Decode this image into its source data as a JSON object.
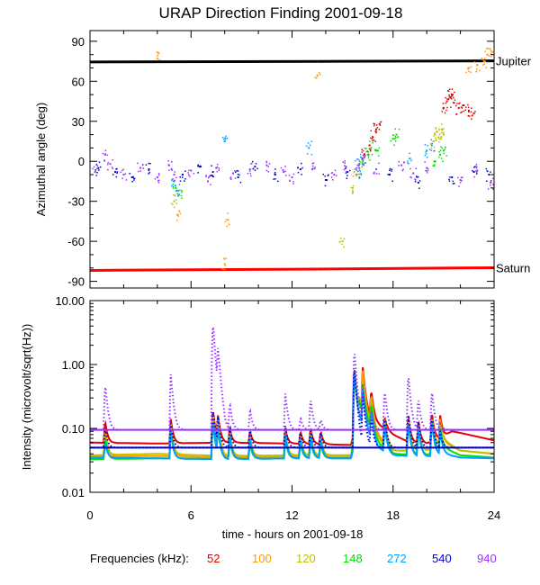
{
  "chart_data": [
    {
      "type": "scatter",
      "title": "URAP Direction Finding  2001-09-18",
      "ylabel": "Azimuthal angle (deg)",
      "xlabel": "",
      "xlim": [
        0,
        24
      ],
      "ylim": [
        -95,
        98
      ],
      "y_ticks": [
        {
          "v": 90,
          "label": "90"
        },
        {
          "v": 60,
          "label": "60"
        },
        {
          "v": 30,
          "label": "30"
        },
        {
          "v": 0,
          "label": "0"
        },
        {
          "v": -30,
          "label": "-30"
        },
        {
          "v": -60,
          "label": "-60"
        },
        {
          "v": -90,
          "label": "-90"
        }
      ],
      "reference_lines": [
        {
          "name": "Jupiter",
          "label": "Jupiter",
          "color": "#000000",
          "y_start": 74.5,
          "y_end": 75.3
        },
        {
          "name": "Saturn",
          "label": "Saturn",
          "color": "#ff0000",
          "y_start": -81.8,
          "y_end": -79.8
        }
      ],
      "series": [
        {
          "name": "52 kHz",
          "color": "#e00000",
          "points": [
            [
              16.3,
              5
            ],
            [
              16.6,
              12
            ],
            [
              16.8,
              18
            ],
            [
              17.0,
              24
            ],
            [
              17.2,
              28
            ],
            [
              21.0,
              40
            ],
            [
              21.2,
              45
            ],
            [
              21.4,
              48
            ],
            [
              21.6,
              44
            ],
            [
              21.9,
              40
            ],
            [
              22.2,
              42
            ],
            [
              22.5,
              38
            ],
            [
              22.8,
              36
            ],
            [
              21.5,
              50
            ]
          ]
        },
        {
          "name": "100 kHz",
          "color": "#ff9900",
          "points": [
            [
              4.0,
              77
            ],
            [
              5.2,
              -40
            ],
            [
              8.2,
              -44
            ],
            [
              15.8,
              -10
            ],
            [
              22.5,
              70
            ],
            [
              23.0,
              72
            ],
            [
              23.4,
              75
            ],
            [
              23.6,
              80
            ],
            [
              23.9,
              82
            ],
            [
              13.5,
              64
            ],
            [
              8.0,
              -77
            ]
          ]
        },
        {
          "name": "120 kHz",
          "color": "#c0c000",
          "points": [
            [
              5.0,
              -30
            ],
            [
              15.6,
              -20
            ],
            [
              16.0,
              -5
            ],
            [
              20.4,
              15
            ],
            [
              20.7,
              18
            ],
            [
              21.0,
              20
            ],
            [
              20.6,
              22
            ],
            [
              20.9,
              24
            ],
            [
              15.0,
              -60
            ]
          ]
        },
        {
          "name": "148 kHz",
          "color": "#00e000",
          "points": [
            [
              5.1,
              -20
            ],
            [
              5.3,
              -25
            ],
            [
              16.2,
              0
            ],
            [
              16.5,
              5
            ],
            [
              16.7,
              10
            ],
            [
              17.1,
              8
            ],
            [
              18.0,
              17
            ],
            [
              18.2,
              20
            ],
            [
              20.8,
              5
            ],
            [
              21.0,
              8
            ],
            [
              20.5,
              0
            ]
          ]
        },
        {
          "name": "272 kHz",
          "color": "#00a0ff",
          "points": [
            [
              5.0,
              -15
            ],
            [
              5.2,
              -22
            ],
            [
              8.0,
              15
            ],
            [
              13.0,
              10
            ],
            [
              15.9,
              -3
            ],
            [
              16.2,
              2
            ],
            [
              19.0,
              2
            ],
            [
              20.0,
              8
            ],
            [
              20.3,
              12
            ],
            [
              16.0,
              -12
            ]
          ]
        },
        {
          "name": "540 kHz",
          "color": "#0000cc",
          "points": [
            [
              0.5,
              -5
            ],
            [
              1.5,
              -8
            ],
            [
              2.5,
              -12
            ],
            [
              3.5,
              -6
            ],
            [
              5.5,
              -10
            ],
            [
              6.5,
              -4
            ],
            [
              7.3,
              -8
            ],
            [
              8.8,
              -12
            ],
            [
              9.8,
              -4
            ],
            [
              11.0,
              -10
            ],
            [
              12.5,
              -6
            ],
            [
              14.0,
              -14
            ],
            [
              15.3,
              -8
            ],
            [
              17.8,
              -10
            ],
            [
              19.5,
              -16
            ],
            [
              21.5,
              -12
            ],
            [
              22.8,
              -8
            ],
            [
              23.7,
              -10
            ]
          ]
        },
        {
          "name": "940 kHz",
          "color": "#9933ff",
          "points": [
            [
              0.3,
              -8
            ],
            [
              0.9,
              5
            ],
            [
              1.2,
              -2
            ],
            [
              2.0,
              -10
            ],
            [
              3.0,
              -5
            ],
            [
              4.0,
              -12
            ],
            [
              4.7,
              -3
            ],
            [
              5.0,
              -10
            ],
            [
              6.0,
              -7
            ],
            [
              7.0,
              -15
            ],
            [
              7.5,
              -5
            ],
            [
              8.5,
              -9
            ],
            [
              9.5,
              -6
            ],
            [
              10.5,
              -3
            ],
            [
              11.5,
              -8
            ],
            [
              12.0,
              -12
            ],
            [
              13.2,
              -6
            ],
            [
              14.5,
              -10
            ],
            [
              15.2,
              -4
            ],
            [
              16.0,
              -2
            ],
            [
              16.3,
              3
            ],
            [
              17.0,
              -6
            ],
            [
              18.5,
              -3
            ],
            [
              19.2,
              -9
            ],
            [
              20.0,
              -5
            ],
            [
              22.0,
              -14
            ],
            [
              23.0,
              -7
            ],
            [
              23.8,
              -16
            ]
          ]
        }
      ]
    },
    {
      "type": "line",
      "ylabel": "Intensity (microvolt/sqrt(Hz))",
      "xlabel": "time - hours on 2001-09-18",
      "xlim": [
        0,
        24
      ],
      "ylim_log": [
        0.01,
        10
      ],
      "x_ticks": [
        {
          "v": 0,
          "label": "0"
        },
        {
          "v": 6,
          "label": "6"
        },
        {
          "v": 12,
          "label": "12"
        },
        {
          "v": 18,
          "label": "18"
        },
        {
          "v": 24,
          "label": "24"
        }
      ],
      "y_ticks": [
        {
          "v": 10,
          "label": "10.00"
        },
        {
          "v": 1,
          "label": "1.00"
        },
        {
          "v": 0.1,
          "label": "0.10"
        },
        {
          "v": 0.01,
          "label": "0.01"
        }
      ],
      "bursts": [
        {
          "t": 0.9,
          "amps": [
            0.13,
            0.1,
            0.08,
            0.07,
            0.06,
            0.1,
            0.5
          ]
        },
        {
          "t": 4.8,
          "amps": [
            0.14,
            0.12,
            0.1,
            0.09,
            0.09,
            0.12,
            0.7
          ]
        },
        {
          "t": 7.3,
          "amps": [
            0.2,
            0.18,
            0.15,
            0.13,
            0.14,
            0.2,
            4.5
          ]
        },
        {
          "t": 7.6,
          "amps": [
            0.16,
            0.14,
            0.12,
            0.1,
            0.1,
            0.15,
            1.8
          ]
        },
        {
          "t": 8.3,
          "amps": [
            0.1,
            0.09,
            0.08,
            0.07,
            0.08,
            0.11,
            0.25
          ]
        },
        {
          "t": 9.5,
          "amps": [
            0.09,
            0.08,
            0.07,
            0.06,
            0.07,
            0.1,
            0.2
          ]
        },
        {
          "t": 11.6,
          "amps": [
            0.1,
            0.09,
            0.08,
            0.07,
            0.08,
            0.11,
            0.35
          ]
        },
        {
          "t": 12.5,
          "amps": [
            0.09,
            0.08,
            0.07,
            0.06,
            0.07,
            0.09,
            0.15
          ]
        },
        {
          "t": 13.1,
          "amps": [
            0.1,
            0.09,
            0.08,
            0.07,
            0.08,
            0.1,
            0.3
          ]
        },
        {
          "t": 13.7,
          "amps": [
            0.09,
            0.08,
            0.07,
            0.06,
            0.07,
            0.09,
            0.14
          ]
        },
        {
          "t": 15.7,
          "amps": [
            0.8,
            0.9,
            0.8,
            0.7,
            0.8,
            0.95,
            1.7
          ]
        },
        {
          "t": 16.2,
          "amps": [
            0.9,
            0.8,
            0.5,
            0.45,
            0.4,
            0.35,
            0.5
          ]
        },
        {
          "t": 16.7,
          "amps": [
            0.4,
            0.35,
            0.3,
            0.25,
            0.2,
            0.15,
            0.2
          ]
        },
        {
          "t": 17.5,
          "amps": [
            0.15,
            0.14,
            0.13,
            0.12,
            0.11,
            0.15,
            0.4
          ]
        },
        {
          "t": 18.9,
          "amps": [
            0.15,
            0.14,
            0.13,
            0.12,
            0.13,
            0.18,
            0.7
          ]
        },
        {
          "t": 19.5,
          "amps": [
            0.13,
            0.12,
            0.11,
            0.1,
            0.11,
            0.14,
            0.3
          ]
        },
        {
          "t": 20.3,
          "amps": [
            0.18,
            0.16,
            0.15,
            0.14,
            0.13,
            0.16,
            0.4
          ]
        },
        {
          "t": 20.8,
          "amps": [
            0.16,
            0.14,
            0.12,
            0.1,
            0.09,
            0.09,
            0.12
          ]
        }
      ],
      "series": [
        {
          "name": "52",
          "color": "#e00000",
          "baseline": [
            [
              0,
              0.06
            ],
            [
              4,
              0.058
            ],
            [
              8,
              0.06
            ],
            [
              12,
              0.058
            ],
            [
              15.5,
              0.055
            ],
            [
              16,
              0.2
            ],
            [
              17,
              0.12
            ],
            [
              18,
              0.08
            ],
            [
              19,
              0.06
            ],
            [
              20,
              0.058
            ],
            [
              21,
              0.075
            ],
            [
              21.5,
              0.09
            ],
            [
              22,
              0.085
            ],
            [
              24,
              0.065
            ]
          ]
        },
        {
          "name": "100",
          "color": "#ff9900",
          "baseline": [
            [
              0,
              0.036
            ],
            [
              4,
              0.037
            ],
            [
              8,
              0.035
            ],
            [
              12,
              0.036
            ],
            [
              15.5,
              0.036
            ],
            [
              16,
              0.2
            ],
            [
              17,
              0.08
            ],
            [
              18,
              0.045
            ],
            [
              20,
              0.045
            ],
            [
              21,
              0.06
            ],
            [
              22,
              0.045
            ],
            [
              24,
              0.04
            ]
          ]
        },
        {
          "name": "120",
          "color": "#c0c000",
          "baseline": [
            [
              0,
              0.038
            ],
            [
              4,
              0.04
            ],
            [
              8,
              0.037
            ],
            [
              12,
              0.038
            ],
            [
              15.5,
              0.038
            ],
            [
              16,
              0.25
            ],
            [
              17,
              0.07
            ],
            [
              18,
              0.045
            ],
            [
              20,
              0.045
            ],
            [
              21,
              0.065
            ],
            [
              22,
              0.045
            ],
            [
              24,
              0.04
            ]
          ]
        },
        {
          "name": "148",
          "color": "#00e000",
          "baseline": [
            [
              0,
              0.033
            ],
            [
              4,
              0.034
            ],
            [
              8,
              0.033
            ],
            [
              12,
              0.034
            ],
            [
              15.5,
              0.034
            ],
            [
              16,
              0.22
            ],
            [
              17,
              0.06
            ],
            [
              18,
              0.04
            ],
            [
              20,
              0.038
            ],
            [
              21,
              0.05
            ],
            [
              22,
              0.038
            ],
            [
              24,
              0.035
            ]
          ]
        },
        {
          "name": "272",
          "color": "#00a0ff",
          "baseline": [
            [
              0,
              0.035
            ],
            [
              4,
              0.034
            ],
            [
              8,
              0.033
            ],
            [
              12,
              0.034
            ],
            [
              15.5,
              0.034
            ],
            [
              16,
              0.12
            ],
            [
              17,
              0.05
            ],
            [
              18,
              0.038
            ],
            [
              20,
              0.036
            ],
            [
              21,
              0.04
            ],
            [
              22,
              0.035
            ],
            [
              24,
              0.034
            ]
          ]
        },
        {
          "name": "540",
          "color": "#0000cc",
          "baseline": [
            [
              0,
              0.05
            ],
            [
              24,
              0.05
            ]
          ]
        },
        {
          "name": "940",
          "color": "#9933ff",
          "baseline": [
            [
              0,
              0.095
            ],
            [
              24,
              0.095
            ]
          ]
        }
      ]
    }
  ],
  "frequencies_label": "Frequencies (kHz):",
  "frequencies": [
    {
      "label": "52",
      "color": "#e00000"
    },
    {
      "label": "100",
      "color": "#ff9900"
    },
    {
      "label": "120",
      "color": "#c0c000"
    },
    {
      "label": "148",
      "color": "#00e000"
    },
    {
      "label": "272",
      "color": "#00a0ff"
    },
    {
      "label": "540",
      "color": "#0000cc"
    },
    {
      "label": "940",
      "color": "#9933ff"
    }
  ]
}
